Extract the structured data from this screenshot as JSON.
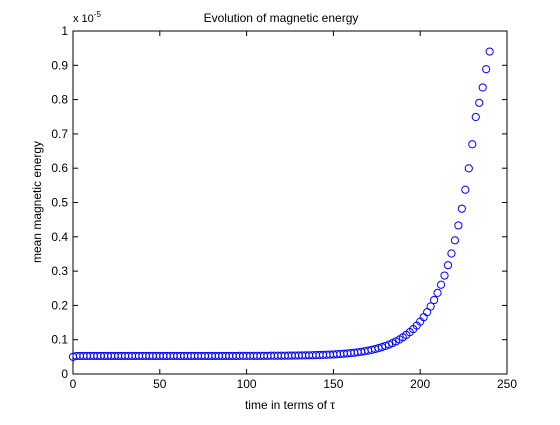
{
  "chart_data": {
    "type": "scatter",
    "title": "Evolution of magnetic energy",
    "xlabel": "time in terms of τ",
    "ylabel": "mean magnetic energy",
    "y_multiplier": "x 10",
    "y_multiplier_exponent": "-5",
    "xlim": [
      0,
      250
    ],
    "ylim": [
      0,
      1
    ],
    "x_ticks": [
      0,
      50,
      100,
      150,
      200,
      250
    ],
    "x_tick_labels": [
      "0",
      "50",
      "100",
      "150",
      "200",
      "250"
    ],
    "y_ticks": [
      0,
      0.1,
      0.2,
      0.3,
      0.4,
      0.5,
      0.6,
      0.7,
      0.8,
      0.9,
      1
    ],
    "y_tick_labels": [
      "0",
      "0.1",
      "0.2",
      "0.3",
      "0.4",
      "0.5",
      "0.6",
      "0.7",
      "0.8",
      "0.9",
      "1"
    ],
    "grid": false,
    "marker": "circle",
    "marker_color": "#0000ff",
    "series": [
      {
        "x": [
          0,
          2,
          4,
          6,
          8,
          10,
          12,
          14,
          16,
          18,
          20,
          22,
          24,
          26,
          28,
          30,
          32,
          34,
          36,
          38,
          40,
          42,
          44,
          46,
          48,
          50,
          52,
          54,
          56,
          58,
          60,
          62,
          64,
          66,
          68,
          70,
          72,
          74,
          76,
          78,
          80,
          82,
          84,
          86,
          88,
          90,
          92,
          94,
          96,
          98,
          100,
          102,
          104,
          106,
          108,
          110,
          112,
          114,
          116,
          118,
          120,
          122,
          124,
          126,
          128,
          130,
          132,
          134,
          136,
          138,
          140,
          142,
          144,
          146,
          148,
          150,
          152,
          154,
          156,
          158,
          160,
          162,
          164,
          166,
          168,
          170,
          172,
          174,
          176,
          178,
          180,
          182,
          184,
          186,
          188,
          190,
          192,
          194,
          196,
          198,
          200,
          202,
          204,
          206,
          208,
          210,
          212,
          214,
          216,
          218,
          220,
          222,
          224,
          226,
          228,
          230,
          232,
          234,
          236,
          238,
          240
        ],
        "y": [
          0.05,
          0.0526,
          0.0526,
          0.0526,
          0.0526,
          0.0526,
          0.0526,
          0.0526,
          0.0526,
          0.0526,
          0.0526,
          0.0526,
          0.0526,
          0.0526,
          0.0526,
          0.0526,
          0.0526,
          0.0526,
          0.0526,
          0.0526,
          0.0526,
          0.0526,
          0.0526,
          0.0526,
          0.0526,
          0.0526,
          0.0526,
          0.0526,
          0.0526,
          0.0526,
          0.0526,
          0.0526,
          0.0526,
          0.0526,
          0.0526,
          0.0526,
          0.0526,
          0.0526,
          0.0526,
          0.0527,
          0.0527,
          0.0527,
          0.0527,
          0.0527,
          0.0527,
          0.0527,
          0.0527,
          0.0527,
          0.0528,
          0.0528,
          0.0528,
          0.0528,
          0.0529,
          0.0529,
          0.0529,
          0.053,
          0.053,
          0.0531,
          0.0532,
          0.0532,
          0.0533,
          0.0534,
          0.0535,
          0.0536,
          0.0538,
          0.0539,
          0.0541,
          0.0543,
          0.0545,
          0.0547,
          0.055,
          0.0553,
          0.0557,
          0.0561,
          0.0565,
          0.057,
          0.0576,
          0.0583,
          0.0591,
          0.0599,
          0.0609,
          0.062,
          0.0633,
          0.0647,
          0.0663,
          0.0682,
          0.0703,
          0.0727,
          0.0754,
          0.0784,
          0.0818,
          0.0857,
          0.0901,
          0.095,
          0.1006,
          0.1069,
          0.114,
          0.122,
          0.131,
          0.1412,
          0.1527,
          0.1657,
          0.1803,
          0.1968,
          0.2155,
          0.2365,
          0.2603,
          0.287,
          0.3172,
          0.3513,
          0.3897,
          0.4331,
          0.482,
          0.5372,
          0.5995,
          0.6698,
          0.7492,
          0.7907,
          0.8352,
          0.8885,
          0.94
        ]
      }
    ]
  }
}
